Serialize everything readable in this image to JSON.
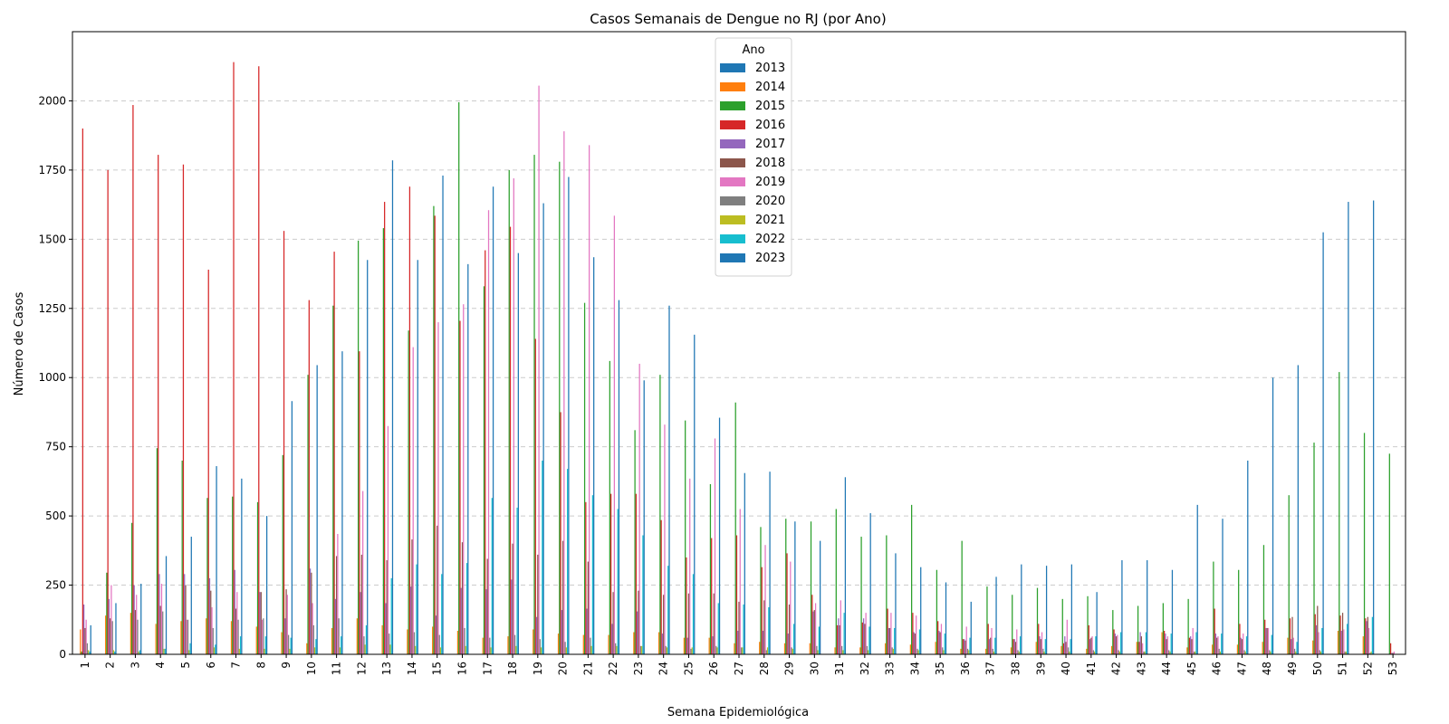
{
  "chart_data": {
    "type": "bar",
    "title": "Casos Semanais de Dengue no RJ (por Ano)",
    "xlabel": "Semana Epidemiológica",
    "ylabel": "Número de Casos",
    "ylim": [
      0,
      2250
    ],
    "yticks": [
      0,
      250,
      500,
      750,
      1000,
      1250,
      1500,
      1750,
      2000
    ],
    "grid": "y-dashed",
    "legend": {
      "title": "Ano",
      "placement": "top-center"
    },
    "categories": [
      "1",
      "2",
      "3",
      "4",
      "5",
      "6",
      "7",
      "8",
      "9",
      "10",
      "11",
      "12",
      "13",
      "14",
      "15",
      "16",
      "17",
      "18",
      "19",
      "20",
      "21",
      "22",
      "23",
      "24",
      "25",
      "26",
      "27",
      "28",
      "29",
      "30",
      "31",
      "32",
      "33",
      "34",
      "35",
      "36",
      "37",
      "38",
      "39",
      "40",
      "41",
      "42",
      "43",
      "44",
      "45",
      "46",
      "47",
      "48",
      "49",
      "50",
      "51",
      "52",
      "53"
    ],
    "series": [
      {
        "name": "2013",
        "color": "#1f77b4",
        "values": [
          0,
          0,
          0,
          0,
          0,
          0,
          0,
          0,
          0,
          0,
          0,
          0,
          0,
          0,
          0,
          0,
          0,
          0,
          0,
          0,
          0,
          0,
          0,
          0,
          0,
          0,
          0,
          0,
          0,
          0,
          0,
          0,
          0,
          0,
          0,
          0,
          0,
          0,
          0,
          0,
          0,
          0,
          0,
          0,
          0,
          0,
          0,
          0,
          0,
          0,
          0,
          0,
          0
        ]
      },
      {
        "name": "2014",
        "color": "#ff7f0e",
        "values": [
          90,
          140,
          150,
          110,
          120,
          130,
          120,
          100,
          80,
          40,
          95,
          130,
          105,
          90,
          100,
          85,
          60,
          65,
          90,
          75,
          70,
          70,
          80,
          80,
          60,
          60,
          40,
          45,
          40,
          40,
          25,
          25,
          40,
          35,
          45,
          20,
          20,
          25,
          45,
          30,
          20,
          30,
          45,
          80,
          25,
          35,
          35,
          45,
          60,
          50,
          85,
          65,
          0
        ]
      },
      {
        "name": "2015",
        "color": "#2ca02c",
        "values": [
          10,
          295,
          475,
          745,
          700,
          565,
          570,
          550,
          720,
          1010,
          1260,
          1495,
          1540,
          1170,
          1620,
          1995,
          1330,
          1750,
          1805,
          1780,
          1270,
          1060,
          810,
          1010,
          845,
          615,
          910,
          460,
          490,
          480,
          525,
          425,
          430,
          540,
          305,
          410,
          245,
          215,
          240,
          200,
          210,
          160,
          175,
          185,
          200,
          335,
          305,
          395,
          575,
          765,
          1020,
          800,
          725
        ]
      },
      {
        "name": "2016",
        "color": "#d62728",
        "values": [
          1900,
          1750,
          1985,
          1805,
          1770,
          1390,
          2140,
          2125,
          1530,
          1280,
          1455,
          1095,
          1635,
          1690,
          1585,
          1205,
          1460,
          1545,
          1140,
          875,
          550,
          580,
          580,
          485,
          350,
          420,
          430,
          315,
          365,
          215,
          105,
          115,
          165,
          150,
          120,
          55,
          110,
          55,
          110,
          40,
          105,
          90,
          45,
          85,
          60,
          165,
          110,
          125,
          130,
          145,
          140,
          130,
          40
        ]
      },
      {
        "name": "2017",
        "color": "#9467bd",
        "values": [
          180,
          200,
          250,
          290,
          290,
          275,
          305,
          225,
          130,
          310,
          200,
          225,
          185,
          245,
          140,
          240,
          235,
          270,
          135,
          160,
          165,
          110,
          155,
          75,
          60,
          65,
          85,
          85,
          75,
          155,
          130,
          130,
          95,
          80,
          85,
          55,
          55,
          55,
          65,
          65,
          55,
          75,
          80,
          75,
          65,
          75,
          60,
          95,
          55,
          105,
          85,
          120,
          5
        ]
      },
      {
        "name": "2018",
        "color": "#8c564b",
        "values": [
          95,
          130,
          160,
          175,
          250,
          230,
          165,
          225,
          235,
          295,
          355,
          360,
          340,
          415,
          465,
          405,
          345,
          400,
          360,
          410,
          335,
          225,
          230,
          215,
          220,
          220,
          190,
          195,
          180,
          160,
          105,
          110,
          95,
          75,
          80,
          50,
          60,
          45,
          55,
          45,
          60,
          65,
          65,
          55,
          55,
          60,
          55,
          95,
          135,
          175,
          150,
          135,
          5
        ]
      },
      {
        "name": "2019",
        "color": "#e377c2",
        "values": [
          125,
          250,
          215,
          255,
          125,
          170,
          225,
          125,
          215,
          185,
          435,
          590,
          825,
          1110,
          1200,
          1265,
          1605,
          1720,
          2055,
          1890,
          1840,
          1585,
          1050,
          830,
          635,
          780,
          525,
          395,
          335,
          185,
          195,
          150,
          150,
          140,
          110,
          100,
          95,
          90,
          80,
          125,
          65,
          70,
          40,
          65,
          95,
          65,
          75,
          95,
          60,
          80,
          90,
          95,
          10
        ]
      },
      {
        "name": "2020",
        "color": "#7f7f7f",
        "values": [
          40,
          120,
          125,
          155,
          125,
          95,
          125,
          130,
          70,
          105,
          130,
          65,
          75,
          80,
          70,
          95,
          60,
          70,
          55,
          45,
          60,
          40,
          30,
          30,
          20,
          30,
          25,
          15,
          25,
          30,
          30,
          30,
          25,
          20,
          25,
          20,
          20,
          15,
          20,
          25,
          15,
          15,
          10,
          15,
          10,
          20,
          15,
          15,
          20,
          15,
          10,
          5,
          0
        ]
      },
      {
        "name": "2021",
        "color": "#bcbd22",
        "values": [
          15,
          15,
          10,
          20,
          15,
          25,
          20,
          20,
          20,
          25,
          25,
          35,
          35,
          30,
          25,
          30,
          25,
          30,
          25,
          25,
          30,
          30,
          30,
          25,
          25,
          25,
          25,
          25,
          20,
          15,
          15,
          15,
          20,
          15,
          15,
          15,
          10,
          10,
          10,
          10,
          10,
          10,
          10,
          10,
          10,
          10,
          10,
          10,
          10,
          10,
          10,
          10,
          0
        ]
      },
      {
        "name": "2022",
        "color": "#17becf",
        "values": [
          10,
          10,
          15,
          20,
          40,
          35,
          65,
          65,
          60,
          55,
          65,
          105,
          275,
          325,
          290,
          330,
          565,
          530,
          700,
          670,
          575,
          525,
          430,
          320,
          290,
          185,
          180,
          170,
          110,
          100,
          150,
          100,
          95,
          90,
          75,
          60,
          60,
          65,
          55,
          55,
          65,
          80,
          80,
          75,
          80,
          75,
          65,
          70,
          45,
          95,
          110,
          135,
          0
        ]
      },
      {
        "name": "2023",
        "color": "#1f77b4",
        "values": [
          105,
          185,
          255,
          355,
          425,
          680,
          635,
          500,
          915,
          1045,
          1095,
          1425,
          1785,
          1425,
          1730,
          1410,
          1690,
          1450,
          1630,
          1725,
          1435,
          1280,
          990,
          1260,
          1155,
          855,
          655,
          660,
          480,
          410,
          640,
          510,
          365,
          315,
          260,
          190,
          280,
          325,
          320,
          325,
          225,
          340,
          340,
          305,
          540,
          490,
          700,
          1000,
          1045,
          1525,
          1635,
          1640,
          0
        ]
      }
    ]
  }
}
